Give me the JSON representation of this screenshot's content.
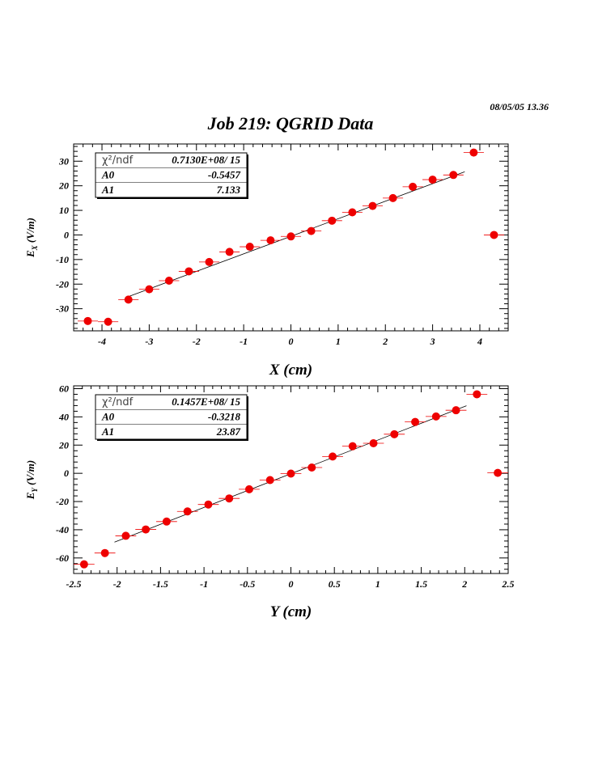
{
  "timestamp": "08/05/05   13.36",
  "title": "Job 219: QGRID Data",
  "colors": {
    "marker": "#ee0000",
    "fit_line": "#000000",
    "frame": "#000000"
  },
  "chart_data": [
    {
      "type": "scatter",
      "title": "",
      "xlabel": "X (cm)",
      "ylabel_main": "E",
      "ylabel_sub": "X",
      "ylabel_unit": " (V/m)",
      "xlim": [
        -4.6,
        4.6
      ],
      "ylim": [
        -39,
        37
      ],
      "xticks": [
        -4,
        -3,
        -2,
        -1,
        0,
        1,
        2,
        3,
        4
      ],
      "yticks": [
        -30,
        -20,
        -10,
        0,
        10,
        20,
        30
      ],
      "legend": "top-left",
      "fit": {
        "range": [
          -3.5,
          3.68
        ],
        "p0": -0.5457,
        "p1": 7.133
      },
      "stats": {
        "chi2_label": "χ²/ndf",
        "chi2_value": "0.7130E+08/   15",
        "a0_label": "A0",
        "a0_value": "-0.5457",
        "a1_label": "A1",
        "a1_value": "7.133"
      },
      "x": [
        -4.3,
        -3.87,
        -3.44,
        -3.0,
        -2.58,
        -2.16,
        -1.73,
        -1.3,
        -0.87,
        -0.43,
        0.0,
        0.43,
        0.87,
        1.3,
        1.73,
        2.16,
        2.58,
        3.0,
        3.44,
        3.87,
        4.3
      ],
      "y": [
        -35,
        -35.3,
        -26.3,
        -22.1,
        -18.6,
        -14.8,
        -11.0,
        -6.9,
        -4.8,
        -2.2,
        -0.6,
        1.6,
        5.8,
        9.2,
        11.8,
        15.0,
        19.6,
        22.5,
        24.4,
        33.5,
        0.0
      ],
      "xerr": 0.215
    },
    {
      "type": "scatter",
      "title": "",
      "xlabel": "Y (cm)",
      "ylabel_main": "E",
      "ylabel_sub": "Y",
      "ylabel_unit": " (V/m)",
      "xlim": [
        -2.5,
        2.5
      ],
      "ylim": [
        -71,
        62
      ],
      "xticks": [
        -2.5,
        -2,
        -1.5,
        -1,
        -0.5,
        0,
        0.5,
        1,
        1.5,
        2,
        2.5
      ],
      "yticks": [
        -60,
        -40,
        -20,
        0,
        20,
        40,
        60
      ],
      "legend": "top-left",
      "fit": {
        "range": [
          -2.03,
          2.02
        ],
        "p0": -0.3218,
        "p1": 23.87
      },
      "stats": {
        "chi2_label": "χ²/ndf",
        "chi2_value": "0.1457E+08/   15",
        "a0_label": "A0",
        "a0_value": "-0.3218",
        "a1_label": "A1",
        "a1_value": "23.87"
      },
      "x": [
        -2.38,
        -2.14,
        -1.9,
        -1.67,
        -1.43,
        -1.19,
        -0.95,
        -0.71,
        -0.48,
        -0.24,
        0.0,
        0.24,
        0.48,
        0.71,
        0.95,
        1.19,
        1.43,
        1.67,
        1.9,
        2.14,
        2.38
      ],
      "y": [
        -64.5,
        -56.5,
        -44.3,
        -39.8,
        -34.2,
        -27.0,
        -22.1,
        -17.8,
        -11.3,
        -4.8,
        -0.2,
        4.1,
        11.9,
        19.2,
        21.3,
        27.7,
        36.4,
        40.3,
        44.7,
        56.0,
        0.3
      ],
      "xerr": 0.12
    }
  ]
}
